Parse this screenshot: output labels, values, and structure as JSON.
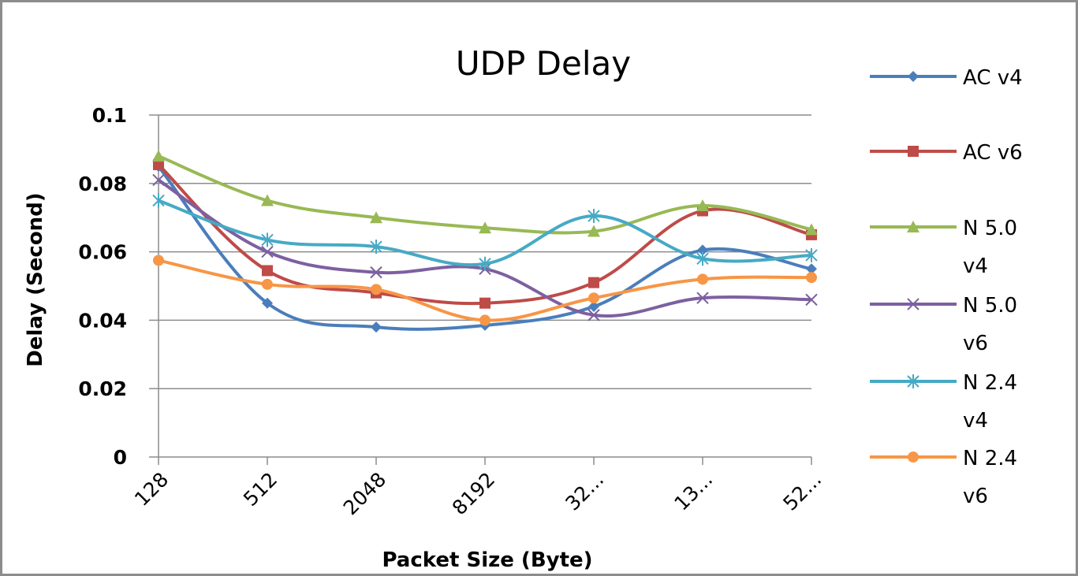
{
  "chart_data": {
    "type": "line",
    "title": "UDP Delay",
    "xlabel": "Packet Size (Byte)",
    "ylabel": "Delay (Second)",
    "categories": [
      "128",
      "512",
      "2048",
      "8192",
      "32...",
      "13...",
      "52..."
    ],
    "ylim": [
      0,
      0.1
    ],
    "yticks": [
      "0",
      "0.02",
      "0.04",
      "0.06",
      "0.08",
      "0.1"
    ],
    "grid": true,
    "legend_position": "right",
    "series": [
      {
        "name": "AC v4",
        "legend_lines": [
          "AC v4"
        ],
        "color": "#4a7ebb",
        "marker": "diamond",
        "values": [
          0.085,
          0.045,
          0.038,
          0.0385,
          0.044,
          0.0605,
          0.055
        ]
      },
      {
        "name": "AC v6",
        "legend_lines": [
          "AC v6"
        ],
        "color": "#be4b48",
        "marker": "square",
        "values": [
          0.0855,
          0.0545,
          0.048,
          0.045,
          0.051,
          0.072,
          0.065
        ]
      },
      {
        "name": "N 5.0 v4",
        "legend_lines": [
          "N 5.0",
          "v4"
        ],
        "color": "#98b954",
        "marker": "triangle",
        "values": [
          0.088,
          0.075,
          0.07,
          0.067,
          0.066,
          0.0735,
          0.0665
        ]
      },
      {
        "name": "N 5.0 v6",
        "legend_lines": [
          "N 5.0",
          "v6"
        ],
        "color": "#7d60a0",
        "marker": "x",
        "values": [
          0.081,
          0.06,
          0.054,
          0.055,
          0.0415,
          0.0465,
          0.046
        ]
      },
      {
        "name": "N 2.4 v4",
        "legend_lines": [
          "N 2.4",
          "v4"
        ],
        "color": "#46aac5",
        "marker": "star",
        "values": [
          0.075,
          0.0635,
          0.0615,
          0.0565,
          0.0705,
          0.058,
          0.059
        ]
      },
      {
        "name": "N 2.4 v6",
        "legend_lines": [
          "N 2.4",
          "v6"
        ],
        "color": "#f79646",
        "marker": "circle",
        "values": [
          0.0575,
          0.0505,
          0.049,
          0.04,
          0.0465,
          0.052,
          0.0525
        ]
      }
    ]
  }
}
